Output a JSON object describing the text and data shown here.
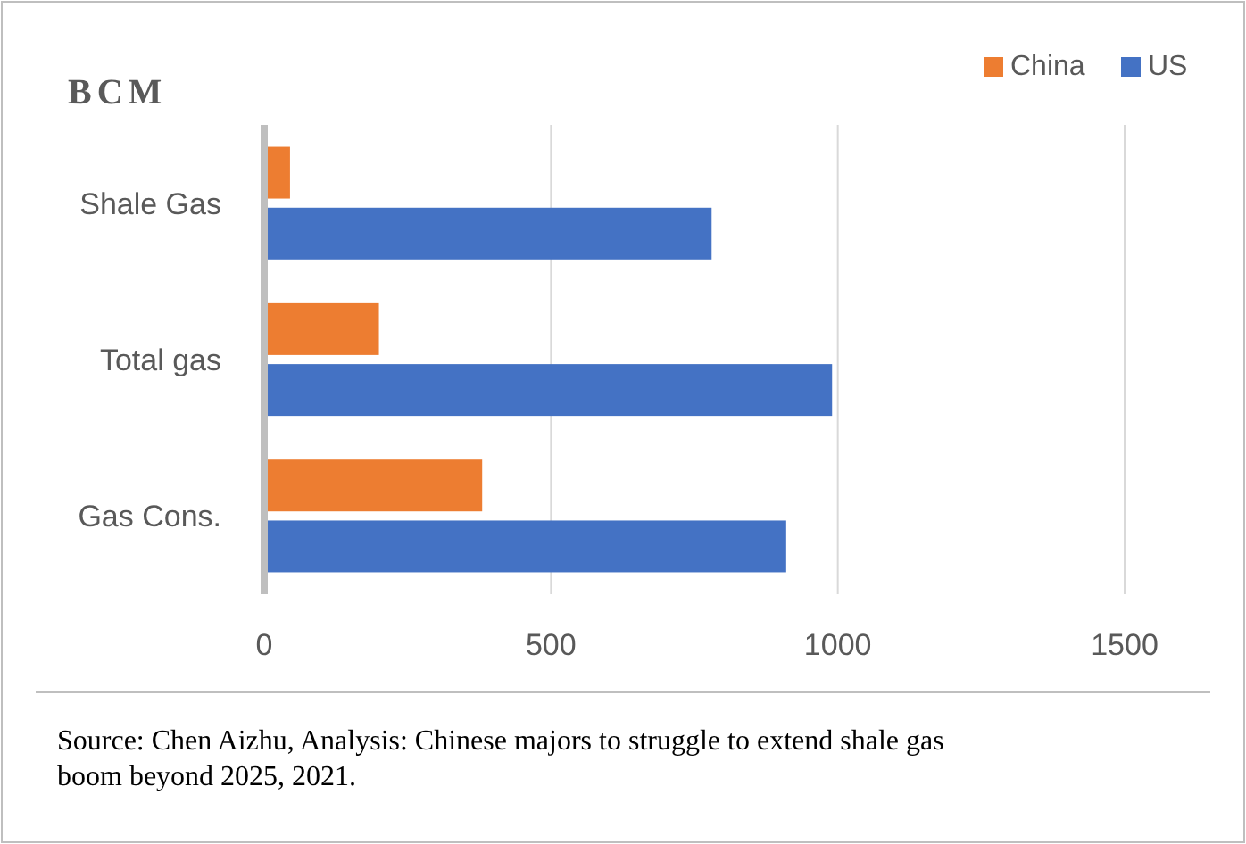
{
  "chart_data": {
    "type": "bar",
    "orientation": "horizontal",
    "title": "BCM",
    "categories": [
      "Shale Gas",
      "Total gas",
      "Gas Cons."
    ],
    "series": [
      {
        "name": "China",
        "color": "#ed7d31",
        "values": [
          45,
          200,
          380
        ]
      },
      {
        "name": "US",
        "color": "#4472c4",
        "values": [
          780,
          990,
          910
        ]
      }
    ],
    "xlim": [
      0,
      1500
    ],
    "xticks": [
      0,
      500,
      1000,
      1500
    ],
    "grid": "x",
    "legend": "top right",
    "annotations": [
      "Source: Chen Aizhu, Analysis: Chinese majors to struggle to extend shale gas boom beyond 2025, 2021."
    ]
  }
}
